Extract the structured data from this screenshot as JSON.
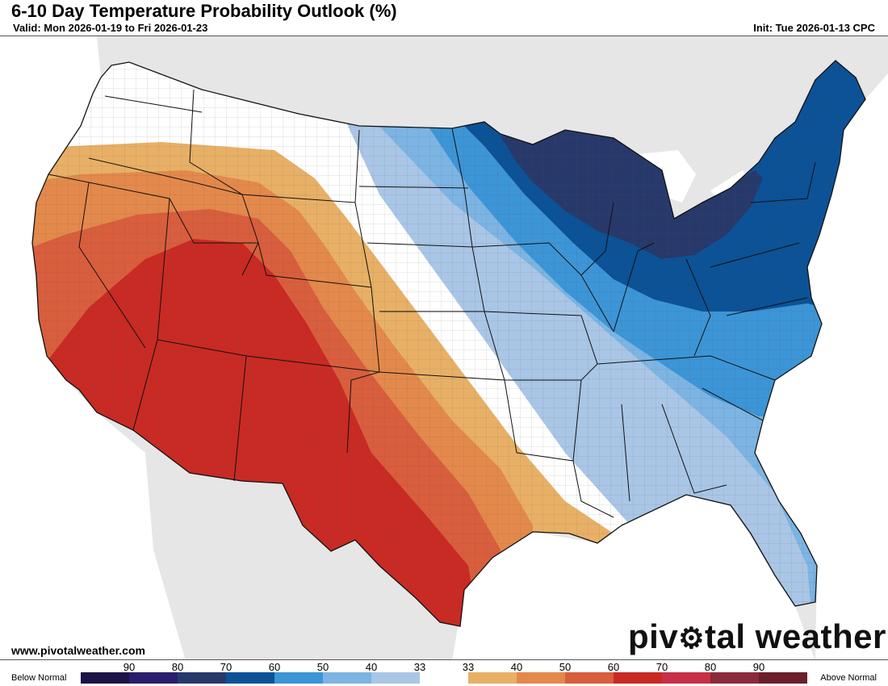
{
  "header": {
    "title": "6-10 Day Temperature Probability Outlook (%)",
    "valid": "Valid: Mon 2026-01-19 to Fri 2026-01-23",
    "init": "Init: Tue 2026-01-13 CPC"
  },
  "footer": {
    "website": "www.pivotalweather.com",
    "logo_pre": "piv",
    "logo_post": "tal weather"
  },
  "legend": {
    "below_label": "Below Normal",
    "above_label": "Above Normal",
    "ticks": [
      "90",
      "80",
      "70",
      "60",
      "50",
      "40",
      "33",
      "33",
      "40",
      "50",
      "60",
      "70",
      "80",
      "90"
    ],
    "colors": [
      "#1c1447",
      "#291d6b",
      "#27396b",
      "#0b5297",
      "#3c95d6",
      "#7cb4e3",
      "#a9c6e6",
      "#ffffff",
      "#e8b066",
      "#e3894b",
      "#d85e3d",
      "#c92a24",
      "#c73046",
      "#8a2a3a",
      "#6b1f2b"
    ]
  },
  "map": {
    "colors": {
      "background": "#e6e6e6",
      "ocean": "#ffffff",
      "below_33": "#a9c6e6",
      "below_40": "#7cb4e3",
      "below_50": "#3c95d6",
      "below_60": "#0b5297",
      "below_70": "#27396b",
      "near_normal": "#ffffff",
      "above_33": "#e8b066",
      "above_40": "#e3894b",
      "above_50": "#d85e3d",
      "above_60": "#c92a24"
    }
  }
}
